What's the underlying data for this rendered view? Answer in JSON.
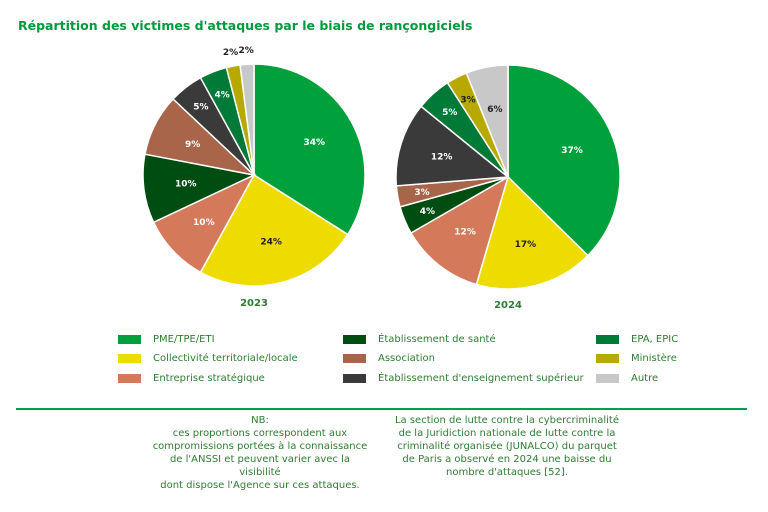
{
  "title": "Répartition des victimes d'attaques par le biais de rançongiciels",
  "chart_data": [
    {
      "type": "pie",
      "label": "2023",
      "slices": [
        {
          "category": "PME/TPE/ETI",
          "value": 34,
          "label": "34%"
        },
        {
          "category": "Collectivité territoriale/locale",
          "value": 24,
          "label": "24%"
        },
        {
          "category": "Entreprise stratégique",
          "value": 10,
          "label": "10%"
        },
        {
          "category": "Établissement de santé",
          "value": 10,
          "label": "10%"
        },
        {
          "category": "Association",
          "value": 9,
          "label": "9%"
        },
        {
          "category": "Établissement d'enseignement supérieur",
          "value": 5,
          "label": "5%"
        },
        {
          "category": "EPA, EPIC",
          "value": 4,
          "label": "4%"
        },
        {
          "category": "Ministère",
          "value": 2,
          "label": "2%"
        },
        {
          "category": "Autre",
          "value": 2,
          "label": "2%"
        }
      ]
    },
    {
      "type": "pie",
      "label": "2024",
      "slices": [
        {
          "category": "PME/TPE/ETI",
          "value": 37,
          "label": "37%"
        },
        {
          "category": "Collectivité territoriale/locale",
          "value": 17,
          "label": "17%"
        },
        {
          "category": "Entreprise stratégique",
          "value": 12,
          "label": "12%"
        },
        {
          "category": "Établissement de santé",
          "value": 4,
          "label": "4%"
        },
        {
          "category": "Association",
          "value": 3,
          "label": "3%"
        },
        {
          "category": "Établissement d'enseignement supérieur",
          "value": 12,
          "label": "12%"
        },
        {
          "category": "EPA, EPIC",
          "value": 5,
          "label": "5%"
        },
        {
          "category": "Ministère",
          "value": 3,
          "label": "3%"
        },
        {
          "category": "Autre",
          "value": 6,
          "label": "6%"
        }
      ]
    }
  ],
  "legend": [
    {
      "label": "PME/TPE/ETI",
      "color": "#00a03c"
    },
    {
      "label": "Collectivité territoriale/locale",
      "color": "#eedc00"
    },
    {
      "label": "Entreprise stratégique",
      "color": "#d4795a"
    },
    {
      "label": "Établissement de santé",
      "color": "#004d12"
    },
    {
      "label": "Association",
      "color": "#a9654a"
    },
    {
      "label": "Établissement d'enseignement supérieur",
      "color": "#3a3a3a"
    },
    {
      "label": "EPA, EPIC",
      "color": "#007a36"
    },
    {
      "label": "Ministère",
      "color": "#b8a900"
    },
    {
      "label": "Autre",
      "color": "#c8c8c8"
    }
  ],
  "notes": {
    "left": "NB:\nces proportions correspondent aux\ncompromissions portées à la connaissance\nde l'ANSSI et peuvent varier avec la visibilité\ndont dispose l'Agence sur ces attaques.",
    "right": "La section de lutte contre la cybercriminalité\nde la Juridiction nationale de lutte contre la\ncriminalité organisée (JUNALCO) du parquet\nde Paris a observé en 2024 une baisse du\nnombre d'attaques [52]."
  }
}
